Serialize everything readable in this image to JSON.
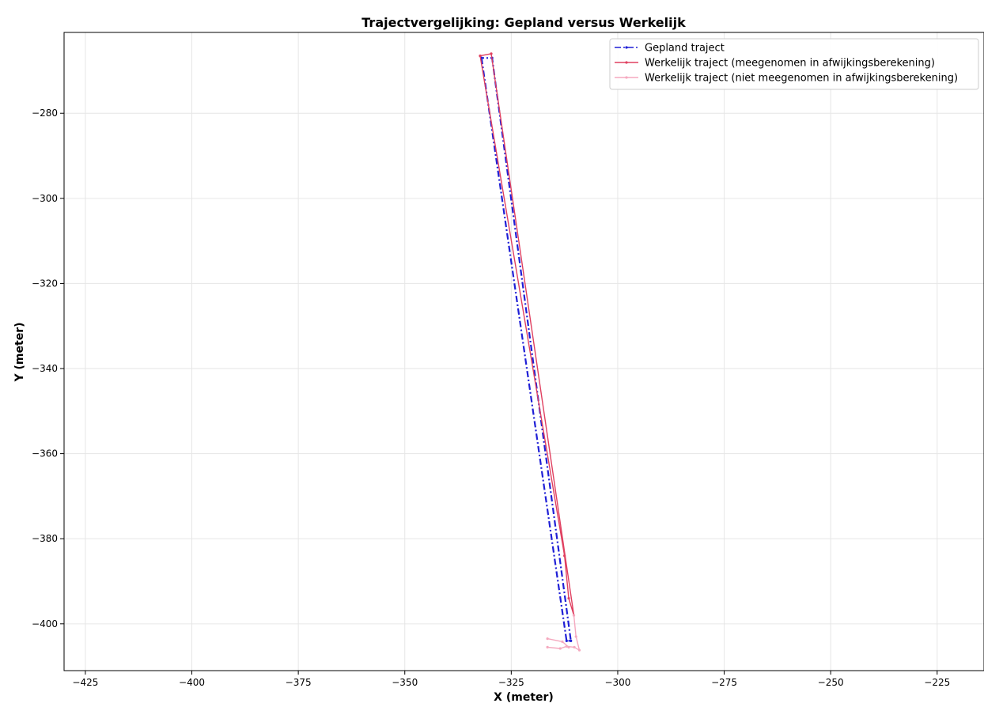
{
  "chart_data": {
    "type": "line",
    "title": "Trajectvergelijking: Gepland versus Werkelijk",
    "xlabel": "X (meter)",
    "ylabel": "Y (meter)",
    "xlim": [
      -430,
      -214
    ],
    "ylim": [
      -411,
      -261
    ],
    "x_ticks": [
      -425,
      -400,
      -375,
      -350,
      -325,
      -300,
      -275,
      -250,
      -225
    ],
    "y_ticks": [
      -280,
      -300,
      -320,
      -340,
      -360,
      -380,
      -400
    ],
    "grid": true,
    "legend_position": "top-right",
    "series": [
      {
        "name": "Gepland traject",
        "color": "#1f1fd6",
        "style": "dash-dot",
        "x": [
          -332.0,
          -312.0,
          -311.0,
          -329.5,
          -332.0
        ],
        "y": [
          -267.0,
          -404.0,
          -404.0,
          -267.0,
          -267.0
        ]
      },
      {
        "name": "Werkelijk traject (meegenomen in afwijkingsberekening)",
        "color": "#e04060",
        "style": "solid",
        "x": [
          -332.3,
          -312.5,
          -311.5,
          -310.3,
          -329.7,
          -332.3
        ],
        "y": [
          -266.5,
          -384.0,
          -394.0,
          -398.0,
          -266.0,
          -266.5
        ]
      },
      {
        "name": "Werkelijk traject (niet meegenomen in afwijkingsberekening)",
        "color": "#f5a9bf",
        "style": "solid",
        "x": [
          -316.5,
          -313.5,
          -312.0,
          -310.2,
          -309.0,
          -309.8,
          -310.3
        ],
        "y": [
          -405.5,
          -405.8,
          -405.3,
          -405.5,
          -406.2,
          -403.0,
          -398.0
        ]
      },
      {
        "name": "",
        "color": "#f5a9bf",
        "style": "solid",
        "x": [
          -316.5,
          -313.0,
          -311.5
        ],
        "y": [
          -403.5,
          -404.2,
          -405.5
        ]
      }
    ]
  }
}
